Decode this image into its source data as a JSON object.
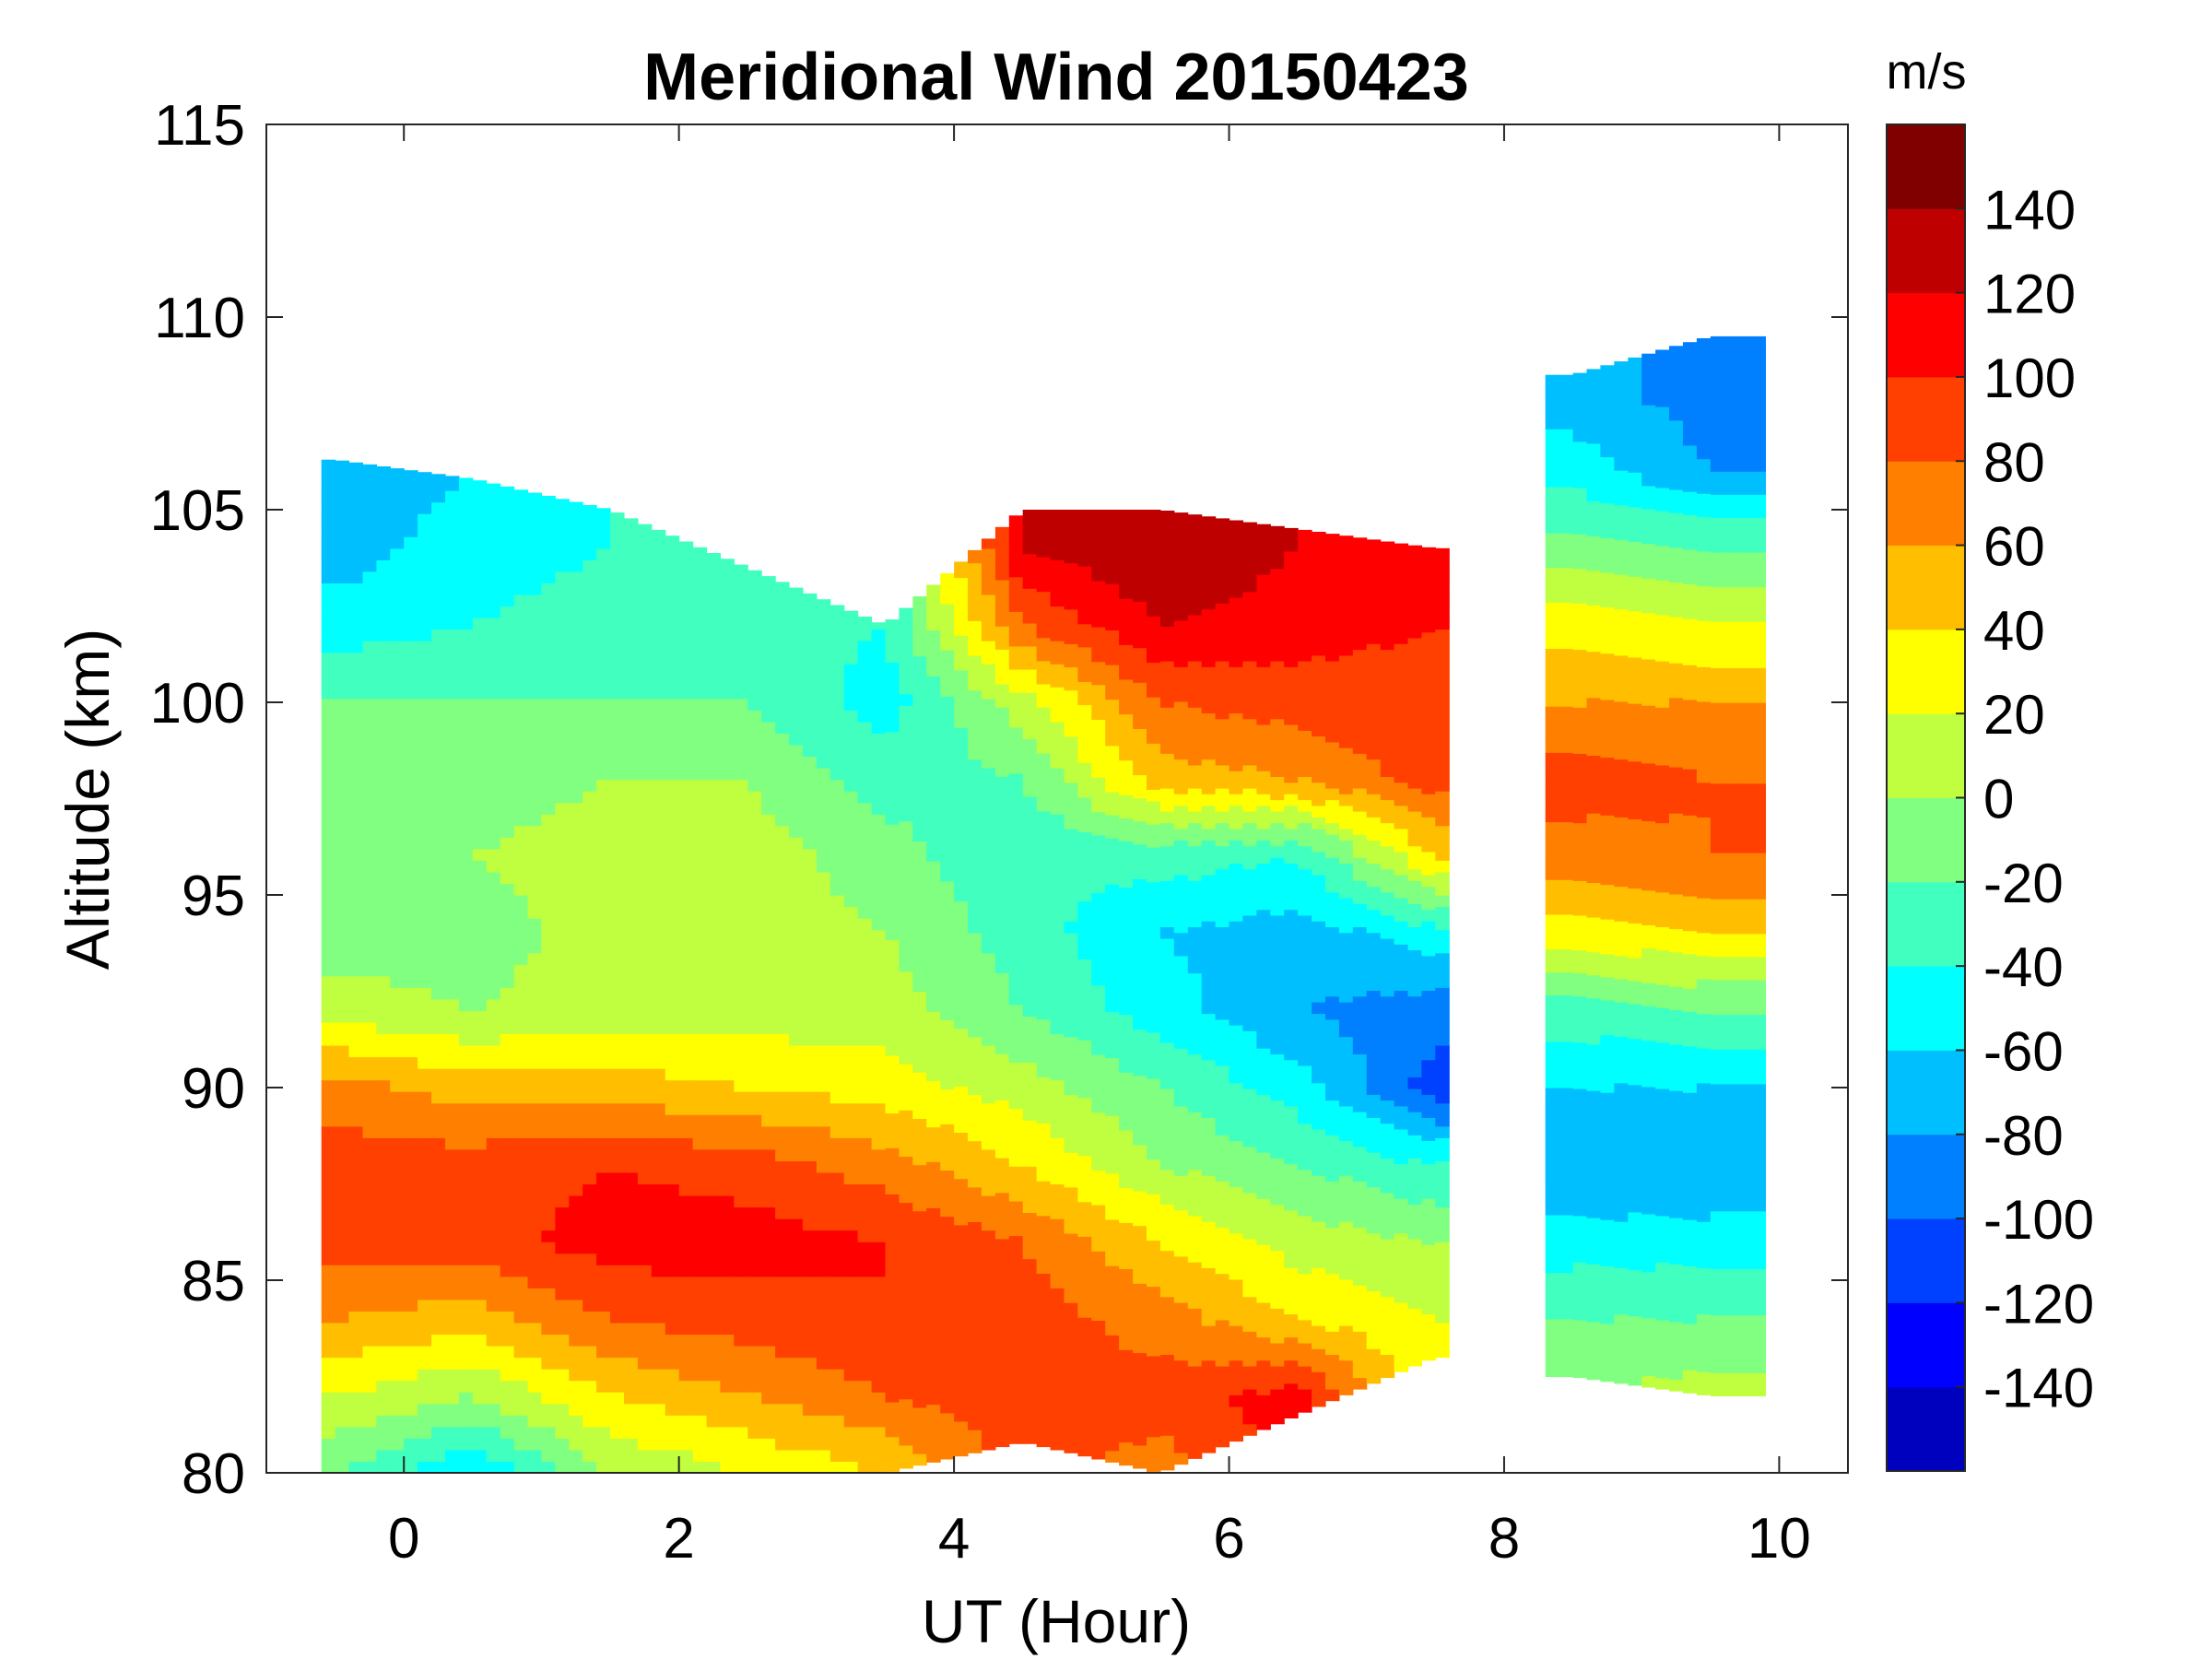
{
  "chart_data": {
    "type": "heatmap",
    "title": "Meridional Wind 20150423",
    "xlabel": "UT (Hour)",
    "ylabel": "Altitude (km)",
    "colorbar_label": "m/s",
    "xlim": [
      -1,
      10.5
    ],
    "ylim": [
      80,
      115
    ],
    "xticks": [
      0,
      2,
      4,
      6,
      8,
      10
    ],
    "yticks": [
      80,
      85,
      90,
      95,
      100,
      105,
      110,
      115
    ],
    "colorbar_range": [
      -160,
      160
    ],
    "colorbar_step": 20,
    "colorbar_ticks": [
      140,
      120,
      100,
      80,
      60,
      40,
      20,
      0,
      -20,
      -40,
      -60,
      -80,
      -100,
      -120,
      -140
    ],
    "colormap": [
      "#0000bf",
      "#0000ff",
      "#0040ff",
      "#0080ff",
      "#00bfff",
      "#00ffff",
      "#40ffbf",
      "#80ff80",
      "#bfff40",
      "#ffff00",
      "#ffbf00",
      "#ff8000",
      "#ff4000",
      "#ff0000",
      "#bf0000",
      "#800000"
    ],
    "data_segments": [
      [
        -0.6,
        7.6
      ],
      [
        8.3,
        9.9
      ]
    ],
    "times": [
      -0.5,
      0.5,
      1.5,
      2.5,
      3.5,
      4.5,
      5.5,
      6.5,
      7.5,
      8.5,
      9.5
    ],
    "altitudes": [
      80,
      82,
      84,
      86,
      88,
      90,
      92,
      94,
      96,
      98,
      100,
      102,
      104,
      106,
      108
    ],
    "valid_altitude_range": [
      [
        80,
        106.3
      ],
      [
        80,
        105.8
      ],
      [
        80,
        105
      ],
      [
        80,
        103.5
      ],
      [
        80,
        102
      ],
      [
        80.8,
        105
      ],
      [
        80,
        105
      ],
      [
        81.5,
        104.5
      ],
      [
        83,
        104
      ],
      [
        82.5,
        108.5
      ],
      [
        82,
        109.5
      ]
    ],
    "wind_ms": [
      [
        -20,
        -60,
        0,
        20,
        40,
        null,
        70,
        null,
        null,
        null,
        null
      ],
      [
        20,
        0,
        40,
        60,
        80,
        90,
        90,
        110,
        null,
        0,
        10
      ],
      [
        60,
        50,
        80,
        90,
        100,
        90,
        70,
        40,
        20,
        -20,
        -20
      ],
      [
        90,
        90,
        110,
        110,
        100,
        80,
        40,
        10,
        0,
        -50,
        -50
      ],
      [
        90,
        90,
        100,
        90,
        70,
        40,
        0,
        -20,
        -40,
        -80,
        -80
      ],
      [
        70,
        50,
        50,
        40,
        30,
        10,
        -20,
        -50,
        -110,
        -60,
        -60
      ],
      [
        10,
        0,
        10,
        10,
        10,
        -20,
        -50,
        -80,
        -90,
        -30,
        -20
      ],
      [
        -10,
        -10,
        10,
        10,
        0,
        -30,
        -60,
        -70,
        -50,
        30,
        40
      ],
      [
        -10,
        0,
        10,
        10,
        -10,
        -40,
        -30,
        -40,
        40,
        70,
        80
      ],
      [
        -10,
        -10,
        0,
        0,
        -30,
        -20,
        50,
        60,
        90,
        90,
        80
      ],
      [
        -20,
        -20,
        -20,
        -20,
        -50,
        10,
        80,
        90,
        90,
        60,
        60
      ],
      [
        -50,
        -40,
        -30,
        -30,
        -40,
        80,
        120,
        110,
        100,
        30,
        20
      ],
      [
        -70,
        -50,
        -40,
        -40,
        null,
        120,
        140,
        120,
        100,
        -10,
        -20
      ],
      [
        -70,
        -60,
        null,
        null,
        null,
        null,
        null,
        null,
        null,
        -50,
        -80
      ],
      [
        null,
        null,
        null,
        null,
        null,
        null,
        null,
        null,
        null,
        -70,
        -90
      ]
    ]
  }
}
